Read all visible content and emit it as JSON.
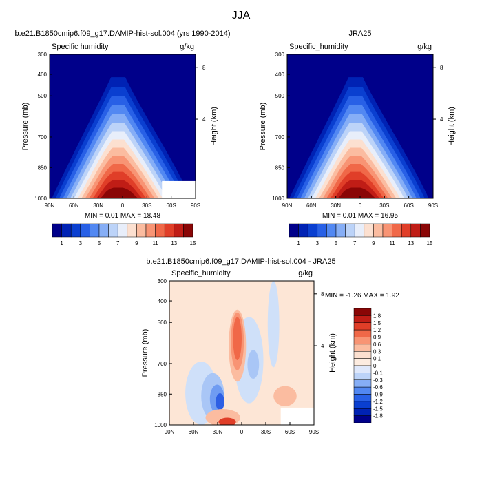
{
  "page_title": "JJA",
  "chart_data": [
    {
      "type": "heatmap",
      "title": "b.e21.B1850cmip6.f09_g17.DAMIP-hist-sol.004 (yrs 1990-2014)",
      "variable_label": "Specific humidity",
      "units": "g/kg",
      "ylabel": "Pressure (mb)",
      "right_label": "Height (km)",
      "x_tick_labels": [
        "90N",
        "60N",
        "30N",
        "0",
        "30S",
        "60S",
        "90S"
      ],
      "y_tick_labels": [
        "300",
        "400",
        "500",
        "700",
        "850",
        "1000"
      ],
      "right_tick_labels": [
        "8",
        "4"
      ],
      "stats": "MIN =  0.01   MAX = 18.48",
      "min": 0.01,
      "max": 18.48,
      "colorbar_labels": [
        "1",
        "3",
        "5",
        "7",
        "9",
        "11",
        "13",
        "15"
      ],
      "colors": [
        "#00008a",
        "#0022b4",
        "#0a3fd0",
        "#2860e6",
        "#5288f2",
        "#86aef6",
        "#bcd3f8",
        "#e8eefa",
        "#fce0d0",
        "#fbbca0",
        "#f89474",
        "#f06848",
        "#e03e28",
        "#c01d16",
        "#8a0606"
      ]
    },
    {
      "type": "heatmap",
      "title": "JRA25",
      "variable_label": "Specific_humidity",
      "units": "g/kg",
      "ylabel": "Pressure (mb)",
      "right_label": "Height (km)",
      "x_tick_labels": [
        "90N",
        "60N",
        "30N",
        "0",
        "30S",
        "60S",
        "90S"
      ],
      "y_tick_labels": [
        "300",
        "400",
        "500",
        "700",
        "850",
        "1000"
      ],
      "right_tick_labels": [
        "8",
        "4"
      ],
      "stats": "MIN =  0.01   MAX = 16.95",
      "min": 0.01,
      "max": 16.95,
      "colorbar_labels": [
        "1",
        "3",
        "5",
        "7",
        "9",
        "11",
        "13",
        "15"
      ],
      "colors": [
        "#00008a",
        "#0022b4",
        "#0a3fd0",
        "#2860e6",
        "#5288f2",
        "#86aef6",
        "#bcd3f8",
        "#e8eefa",
        "#fce0d0",
        "#fbbca0",
        "#f89474",
        "#f06848",
        "#e03e28",
        "#c01d16",
        "#8a0606"
      ]
    },
    {
      "type": "heatmap",
      "title": "b.e21.B1850cmip6.f09_g17.DAMIP-hist-sol.004 - JRA25",
      "variable_label": "Specific_humidity",
      "units": "g/kg",
      "ylabel": "Pressure (mb)",
      "right_label": "Height (km)",
      "x_tick_labels": [
        "90N",
        "60N",
        "30N",
        "0",
        "30S",
        "60S",
        "90S"
      ],
      "y_tick_labels": [
        "300",
        "400",
        "500",
        "700",
        "850",
        "1000"
      ],
      "right_tick_labels": [
        "8",
        "4"
      ],
      "stats": "MIN = -1.26   MAX =  1.92",
      "min": -1.26,
      "max": 1.92,
      "colorbar_labels": [
        "1.8",
        "1.5",
        "1.2",
        "0.9",
        "0.6",
        "0.3",
        "0.1",
        "0",
        "-0.1",
        "-0.3",
        "-0.6",
        "-0.9",
        "-1.2",
        "-1.5",
        "-1.8"
      ],
      "colors": [
        "#8a0606",
        "#c01d16",
        "#e03e28",
        "#f06848",
        "#f89474",
        "#fbbca0",
        "#fce0d0",
        "#fdece0",
        "#dfe8fb",
        "#bcd3f8",
        "#86aef6",
        "#5288f2",
        "#2860e6",
        "#0a3fd0",
        "#0022b4",
        "#00008a"
      ]
    }
  ]
}
